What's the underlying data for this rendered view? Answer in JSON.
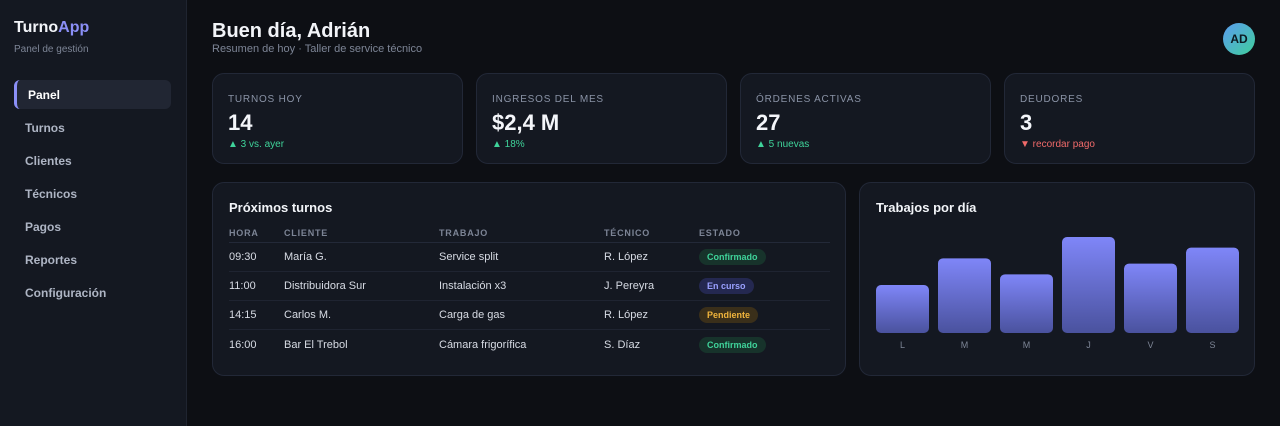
{
  "sidebar": {
    "brand_part1": "Turno",
    "brand_part2": "App",
    "subtitle": "Panel de gestión",
    "items": [
      {
        "label": "Panel",
        "active": true
      },
      {
        "label": "Turnos"
      },
      {
        "label": "Clientes"
      },
      {
        "label": "Técnicos"
      },
      {
        "label": "Pagos"
      },
      {
        "label": "Reportes"
      },
      {
        "label": "Configuración"
      }
    ]
  },
  "header": {
    "greeting": "Buen día, Adrián",
    "subtitle": "Resumen de hoy · Taller de service técnico",
    "avatar_initials": "AD"
  },
  "kpis": [
    {
      "label": "TURNOS HOY",
      "value": "14",
      "delta": "▲ 3 vs. ayer",
      "trend": "up"
    },
    {
      "label": "INGRESOS DEL MES",
      "value": "$2,4 M",
      "delta": "▲ 18%",
      "trend": "up"
    },
    {
      "label": "ÓRDENES ACTIVAS",
      "value": "27",
      "delta": "▲ 5 nuevas",
      "trend": "up"
    },
    {
      "label": "DEUDORES",
      "value": "3",
      "delta": "▼ recordar pago",
      "trend": "down"
    }
  ],
  "appointments": {
    "title": "Próximos turnos",
    "columns": [
      "HORA",
      "CLIENTE",
      "TRABAJO",
      "TÉCNICO",
      "ESTADO"
    ],
    "rows": [
      {
        "hora": "09:30",
        "cliente": "María G.",
        "trabajo": "Service split",
        "tecnico": "R. López",
        "estado": "Confirmado",
        "status": "ok"
      },
      {
        "hora": "11:00",
        "cliente": "Distribuidora Sur",
        "trabajo": "Instalación x3",
        "tecnico": "J. Pereyra",
        "estado": "En curso",
        "status": "prog"
      },
      {
        "hora": "14:15",
        "cliente": "Carlos M.",
        "trabajo": "Carga de gas",
        "tecnico": "R. López",
        "estado": "Pendiente",
        "status": "pend"
      },
      {
        "hora": "16:00",
        "cliente": "Bar El Trebol",
        "trabajo": "Cámara frigorífica",
        "tecnico": "S. Díaz",
        "estado": "Confirmado",
        "status": "ok"
      }
    ]
  },
  "jobs_chart": {
    "title": "Trabajos por día",
    "bar_color_top": "#7f86f8",
    "bar_color_bottom": "#4a529e"
  },
  "chart_data": {
    "type": "bar",
    "categories": [
      "L",
      "M",
      "M",
      "J",
      "V",
      "S"
    ],
    "values": [
      45,
      70,
      55,
      90,
      65,
      80
    ],
    "title": "Trabajos por día",
    "xlabel": "",
    "ylabel": "",
    "ylim": [
      0,
      90
    ],
    "grid": false
  }
}
